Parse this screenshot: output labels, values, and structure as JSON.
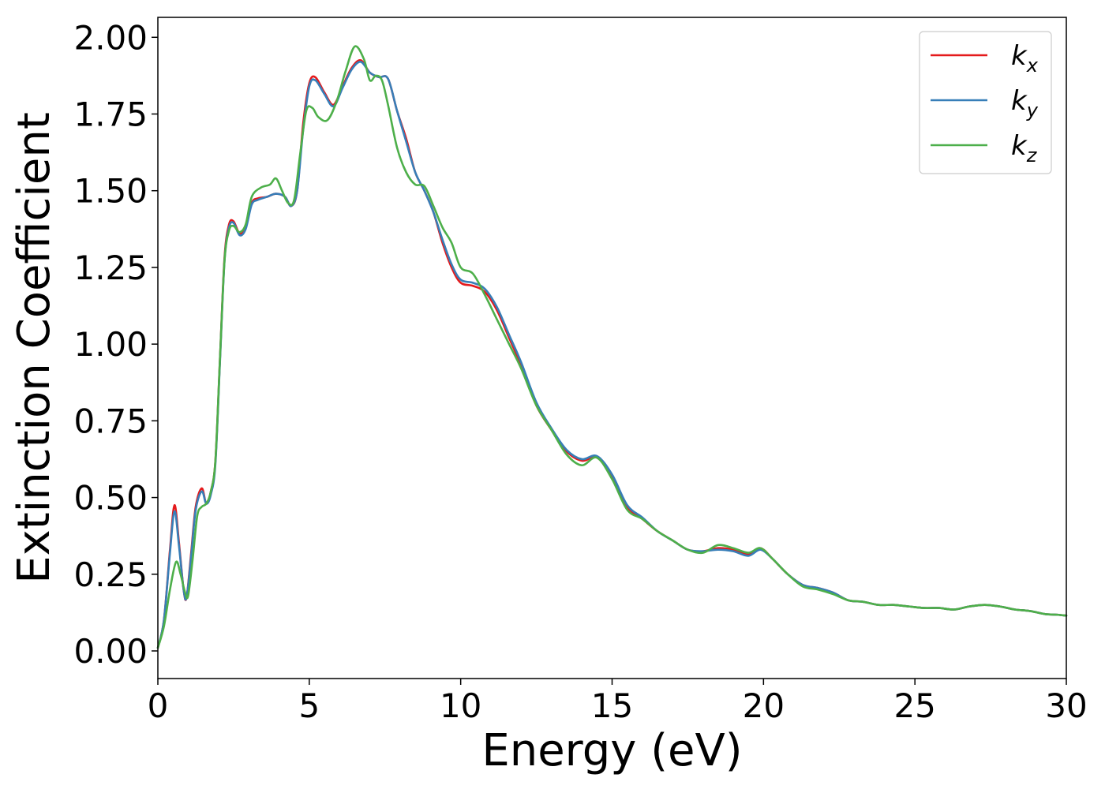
{
  "chart_data": {
    "type": "line",
    "title": "",
    "xlabel": "Energy (eV)",
    "ylabel": "Extinction Coefficient",
    "xlim": [
      0,
      30
    ],
    "ylim": [
      -0.09,
      2.065
    ],
    "xticks": [
      0,
      5,
      10,
      15,
      20,
      25,
      30
    ],
    "xtick_labels": [
      "0",
      "5",
      "10",
      "15",
      "20",
      "25",
      "30"
    ],
    "yticks": [
      0.0,
      0.25,
      0.5,
      0.75,
      1.0,
      1.25,
      1.5,
      1.75,
      2.0
    ],
    "ytick_labels": [
      "0.00",
      "0.25",
      "0.50",
      "0.75",
      "1.00",
      "1.25",
      "1.50",
      "1.75",
      "2.00"
    ],
    "grid": false,
    "legend_position": "top-right",
    "series": [
      {
        "name": "k_x",
        "label_base": "k",
        "label_sub": "x",
        "color": "#e41a1c",
        "x": [
          0,
          0.2,
          0.4,
          0.55,
          0.7,
          0.85,
          0.95,
          1.1,
          1.25,
          1.45,
          1.6,
          1.75,
          1.9,
          2.05,
          2.2,
          2.35,
          2.5,
          2.7,
          2.9,
          3.1,
          3.3,
          3.6,
          3.9,
          4.2,
          4.4,
          4.6,
          4.8,
          5.0,
          5.2,
          5.5,
          5.8,
          6.1,
          6.4,
          6.7,
          7.0,
          7.3,
          7.6,
          7.9,
          8.2,
          8.5,
          8.8,
          9.1,
          9.4,
          9.7,
          10.0,
          10.4,
          10.8,
          11.2,
          11.6,
          12.0,
          12.5,
          13.0,
          13.5,
          14.0,
          14.5,
          15.0,
          15.5,
          16.0,
          16.5,
          17.0,
          17.5,
          18.0,
          18.5,
          19.0,
          19.5,
          19.9,
          20.3,
          20.8,
          21.3,
          21.8,
          22.3,
          22.8,
          23.3,
          23.8,
          24.3,
          24.8,
          25.3,
          25.8,
          26.3,
          26.8,
          27.3,
          27.8,
          28.3,
          28.8,
          29.3,
          29.7,
          30.0
        ],
        "y": [
          0.01,
          0.1,
          0.33,
          0.475,
          0.35,
          0.2,
          0.175,
          0.32,
          0.47,
          0.53,
          0.48,
          0.52,
          0.62,
          0.95,
          1.28,
          1.39,
          1.4,
          1.36,
          1.38,
          1.46,
          1.475,
          1.48,
          1.49,
          1.48,
          1.45,
          1.5,
          1.72,
          1.85,
          1.87,
          1.82,
          1.78,
          1.84,
          1.9,
          1.925,
          1.885,
          1.87,
          1.865,
          1.76,
          1.67,
          1.56,
          1.5,
          1.43,
          1.33,
          1.25,
          1.2,
          1.19,
          1.17,
          1.11,
          1.02,
          0.93,
          0.8,
          0.72,
          0.65,
          0.62,
          0.63,
          0.57,
          0.47,
          0.43,
          0.39,
          0.36,
          0.33,
          0.325,
          0.335,
          0.33,
          0.315,
          0.335,
          0.3,
          0.25,
          0.215,
          0.205,
          0.19,
          0.165,
          0.16,
          0.15,
          0.15,
          0.145,
          0.14,
          0.14,
          0.135,
          0.145,
          0.15,
          0.145,
          0.135,
          0.13,
          0.12,
          0.118,
          0.115
        ]
      },
      {
        "name": "k_y",
        "label_base": "k",
        "label_sub": "y",
        "color": "#377eb8",
        "x": [
          0,
          0.2,
          0.4,
          0.55,
          0.7,
          0.85,
          0.95,
          1.1,
          1.25,
          1.45,
          1.6,
          1.75,
          1.9,
          2.05,
          2.2,
          2.35,
          2.5,
          2.7,
          2.9,
          3.1,
          3.3,
          3.6,
          3.9,
          4.2,
          4.4,
          4.6,
          4.8,
          5.0,
          5.2,
          5.5,
          5.8,
          6.1,
          6.4,
          6.7,
          7.0,
          7.3,
          7.6,
          7.9,
          8.2,
          8.5,
          8.8,
          9.1,
          9.4,
          9.7,
          10.0,
          10.4,
          10.8,
          11.2,
          11.6,
          12.0,
          12.5,
          13.0,
          13.5,
          14.0,
          14.5,
          15.0,
          15.5,
          16.0,
          16.5,
          17.0,
          17.5,
          18.0,
          18.5,
          19.0,
          19.5,
          19.9,
          20.3,
          20.8,
          21.3,
          21.8,
          22.3,
          22.8,
          23.3,
          23.8,
          24.3,
          24.8,
          25.3,
          25.8,
          26.3,
          26.8,
          27.3,
          27.8,
          28.3,
          28.8,
          29.3,
          29.7,
          30.0
        ],
        "y": [
          0.01,
          0.1,
          0.32,
          0.455,
          0.34,
          0.2,
          0.175,
          0.31,
          0.46,
          0.52,
          0.48,
          0.51,
          0.61,
          0.94,
          1.27,
          1.38,
          1.395,
          1.355,
          1.375,
          1.455,
          1.47,
          1.48,
          1.49,
          1.48,
          1.45,
          1.5,
          1.7,
          1.84,
          1.86,
          1.815,
          1.775,
          1.835,
          1.895,
          1.92,
          1.885,
          1.87,
          1.865,
          1.76,
          1.66,
          1.56,
          1.5,
          1.43,
          1.34,
          1.26,
          1.21,
          1.2,
          1.18,
          1.12,
          1.03,
          0.94,
          0.81,
          0.725,
          0.655,
          0.625,
          0.635,
          0.575,
          0.475,
          0.435,
          0.39,
          0.36,
          0.33,
          0.325,
          0.33,
          0.325,
          0.31,
          0.33,
          0.3,
          0.25,
          0.215,
          0.205,
          0.19,
          0.165,
          0.16,
          0.15,
          0.15,
          0.145,
          0.14,
          0.14,
          0.135,
          0.145,
          0.15,
          0.145,
          0.135,
          0.13,
          0.12,
          0.118,
          0.115
        ]
      },
      {
        "name": "k_z",
        "label_base": "k",
        "label_sub": "z",
        "color": "#4daf4a",
        "x": [
          0,
          0.2,
          0.4,
          0.6,
          0.75,
          0.9,
          1.0,
          1.15,
          1.3,
          1.45,
          1.6,
          1.75,
          1.9,
          2.05,
          2.2,
          2.35,
          2.5,
          2.7,
          2.9,
          3.1,
          3.4,
          3.7,
          3.9,
          4.1,
          4.3,
          4.5,
          4.7,
          4.9,
          5.1,
          5.3,
          5.6,
          5.9,
          6.2,
          6.5,
          6.8,
          7.0,
          7.2,
          7.4,
          7.6,
          7.9,
          8.2,
          8.5,
          8.8,
          9.1,
          9.4,
          9.7,
          10.0,
          10.4,
          10.8,
          11.2,
          11.6,
          12.0,
          12.5,
          13.0,
          13.5,
          14.0,
          14.5,
          15.0,
          15.5,
          16.0,
          16.5,
          17.0,
          17.5,
          18.0,
          18.5,
          19.0,
          19.5,
          19.9,
          20.3,
          20.8,
          21.3,
          21.8,
          22.3,
          22.8,
          23.3,
          23.8,
          24.3,
          24.8,
          25.3,
          25.8,
          26.3,
          26.8,
          27.3,
          27.8,
          28.3,
          28.8,
          29.3,
          29.7,
          30.0
        ],
        "y": [
          0.01,
          0.08,
          0.2,
          0.29,
          0.25,
          0.19,
          0.18,
          0.3,
          0.44,
          0.47,
          0.48,
          0.52,
          0.62,
          0.95,
          1.27,
          1.37,
          1.385,
          1.365,
          1.39,
          1.48,
          1.51,
          1.52,
          1.54,
          1.5,
          1.46,
          1.47,
          1.62,
          1.76,
          1.77,
          1.74,
          1.73,
          1.79,
          1.89,
          1.97,
          1.93,
          1.86,
          1.875,
          1.86,
          1.78,
          1.64,
          1.56,
          1.52,
          1.515,
          1.45,
          1.38,
          1.33,
          1.25,
          1.23,
          1.16,
          1.08,
          1.0,
          0.92,
          0.8,
          0.72,
          0.64,
          0.605,
          0.63,
          0.56,
          0.46,
          0.43,
          0.39,
          0.36,
          0.33,
          0.32,
          0.345,
          0.335,
          0.32,
          0.335,
          0.3,
          0.25,
          0.21,
          0.2,
          0.185,
          0.165,
          0.16,
          0.15,
          0.15,
          0.145,
          0.14,
          0.14,
          0.135,
          0.145,
          0.15,
          0.145,
          0.135,
          0.13,
          0.12,
          0.118,
          0.115
        ]
      }
    ]
  }
}
